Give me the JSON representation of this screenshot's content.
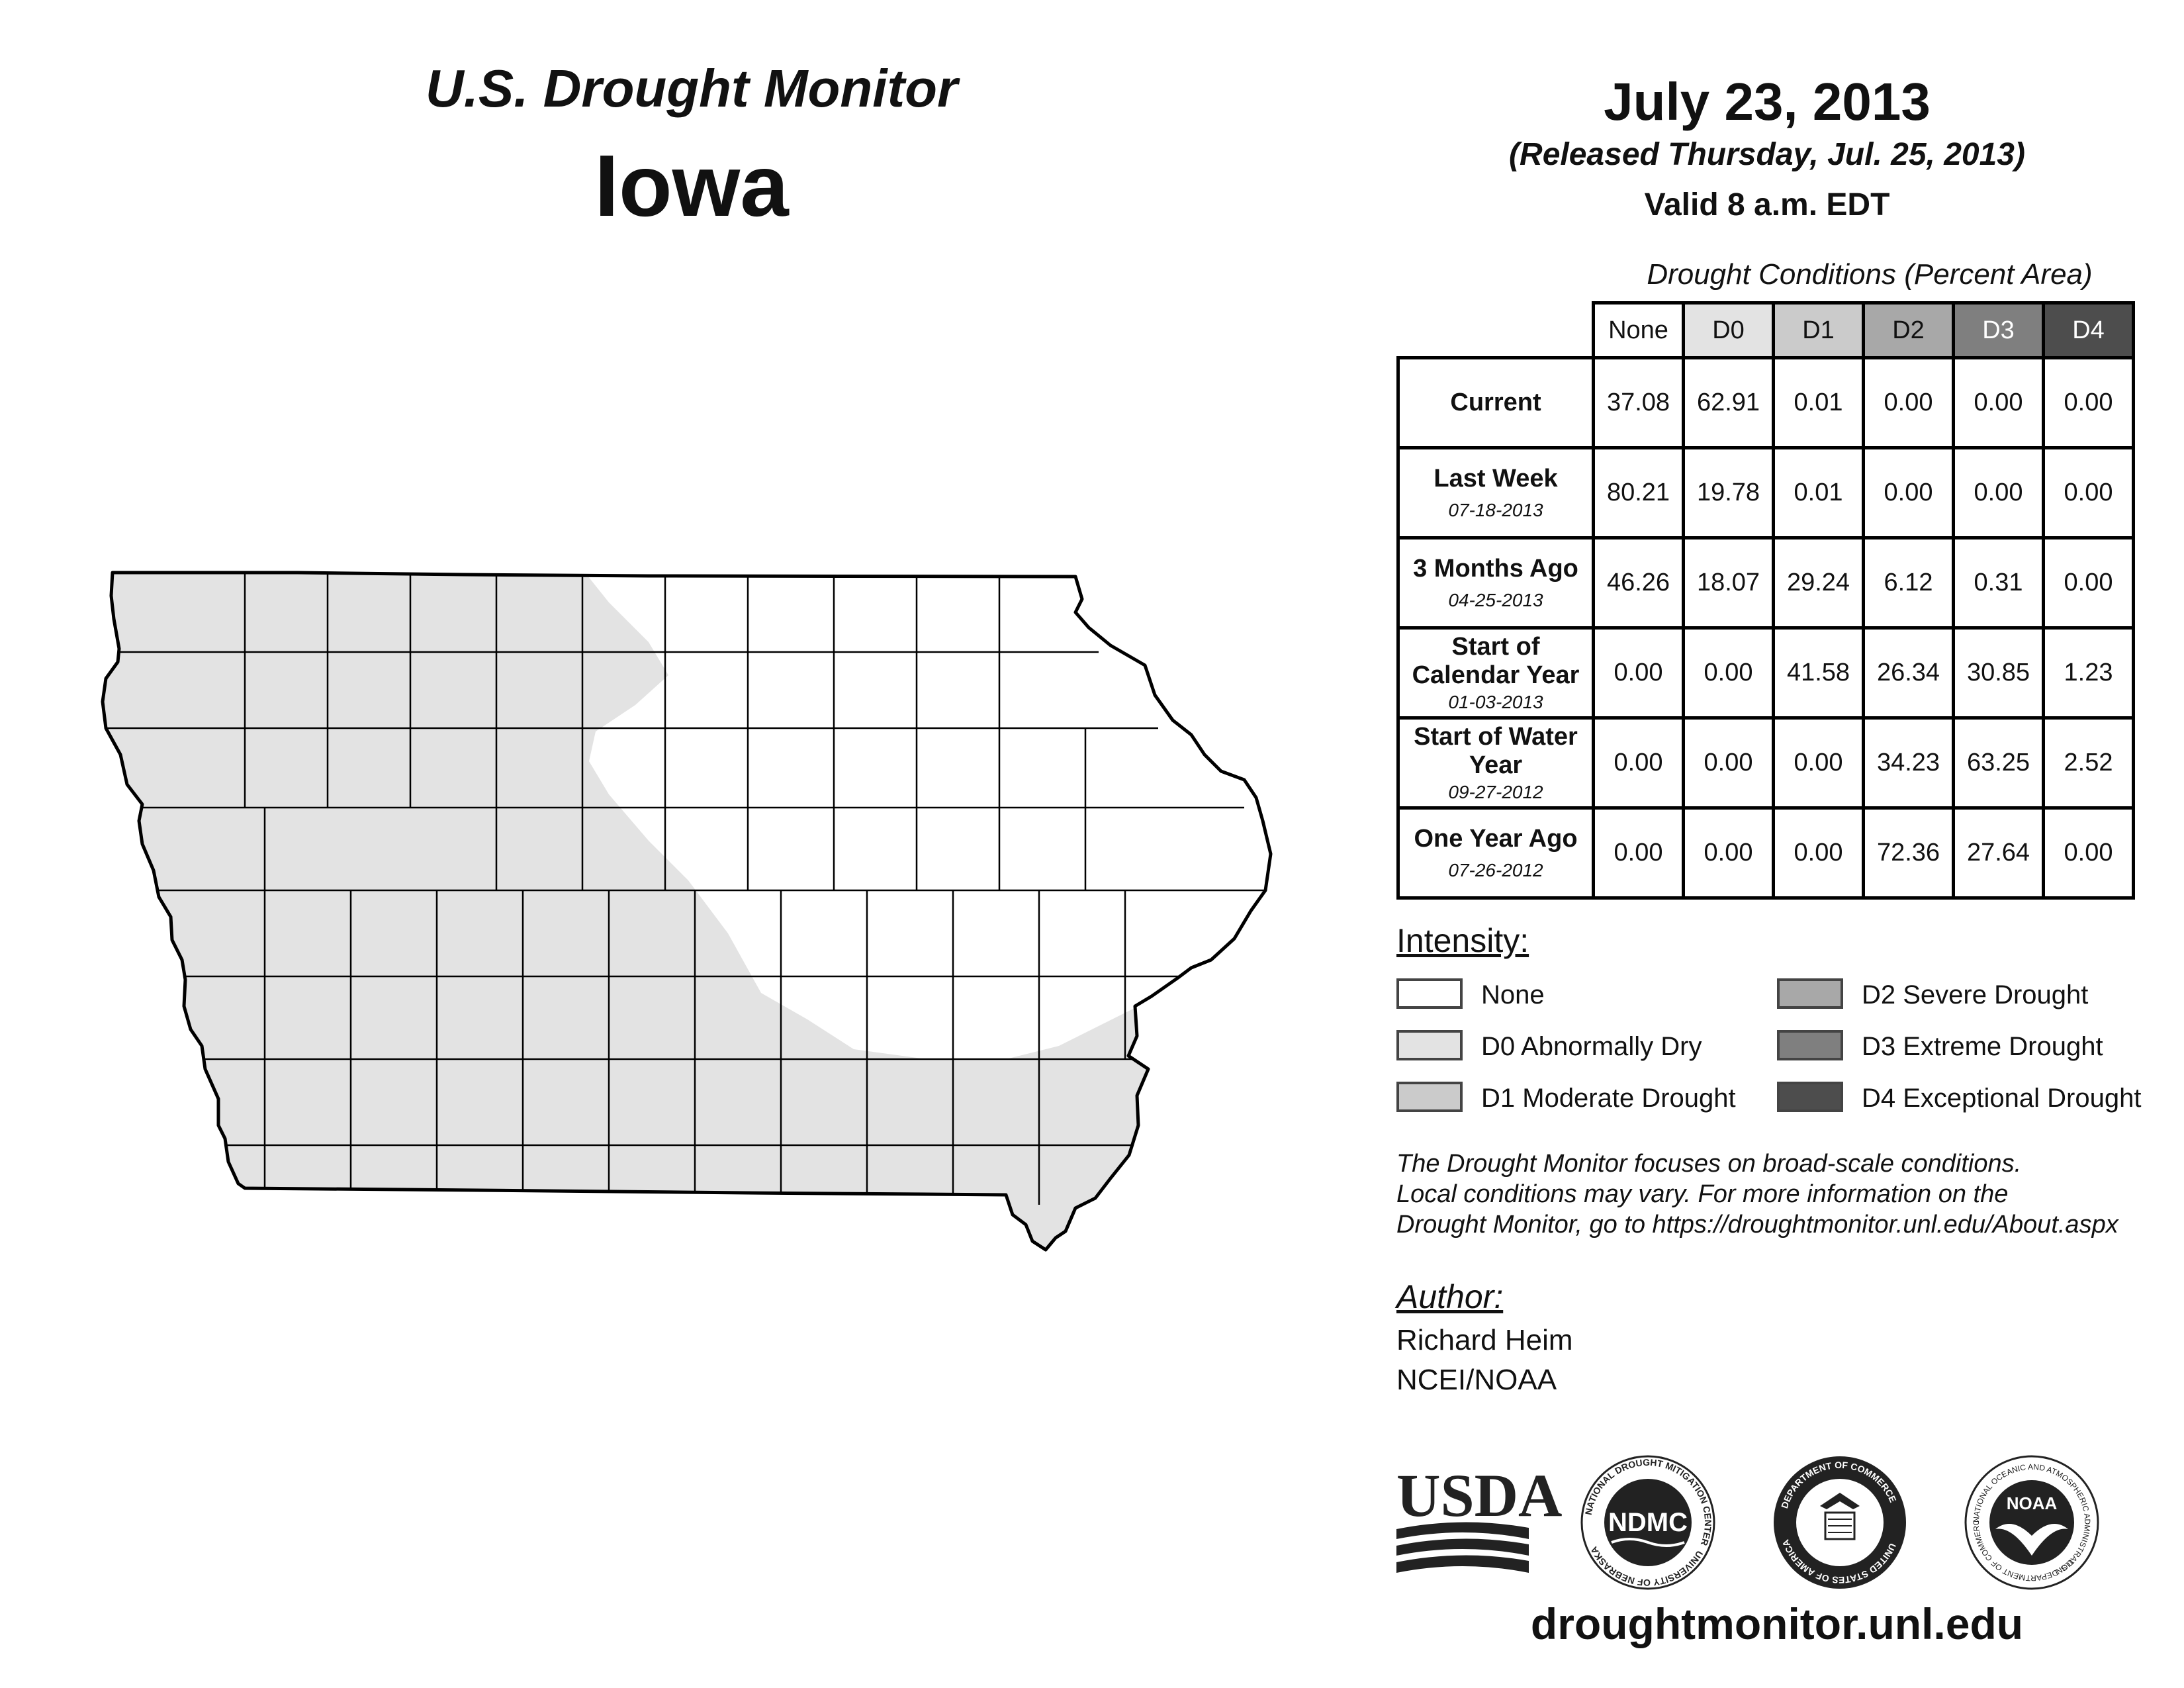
{
  "header": {
    "title": "U.S. Drought Monitor",
    "state": "Iowa",
    "date": "July 23, 2013",
    "released": "(Released Thursday, Jul. 25, 2013)",
    "valid": "Valid 8 a.m. EDT"
  },
  "table": {
    "caption": "Drought Conditions (Percent Area)",
    "columns": [
      "None",
      "D0",
      "D1",
      "D2",
      "D3",
      "D4"
    ],
    "column_colors": [
      "#ffffff",
      "#e3e3e3",
      "#cbcbcb",
      "#a8a8a8",
      "#7f7f7f",
      "#4d4d4d"
    ],
    "rows": [
      {
        "label": "Current",
        "date": "",
        "values": [
          "37.08",
          "62.91",
          "0.01",
          "0.00",
          "0.00",
          "0.00"
        ]
      },
      {
        "label": "Last Week",
        "date": "07-18-2013",
        "values": [
          "80.21",
          "19.78",
          "0.01",
          "0.00",
          "0.00",
          "0.00"
        ]
      },
      {
        "label": "3 Months Ago",
        "date": "04-25-2013",
        "values": [
          "46.26",
          "18.07",
          "29.24",
          "6.12",
          "0.31",
          "0.00"
        ]
      },
      {
        "label": "Start of Calendar Year",
        "date": "01-03-2013",
        "values": [
          "0.00",
          "0.00",
          "41.58",
          "26.34",
          "30.85",
          "1.23"
        ]
      },
      {
        "label": "Start of Water Year",
        "date": "09-27-2012",
        "values": [
          "0.00",
          "0.00",
          "0.00",
          "34.23",
          "63.25",
          "2.52"
        ]
      },
      {
        "label": "One Year Ago",
        "date": "07-26-2012",
        "values": [
          "0.00",
          "0.00",
          "0.00",
          "72.36",
          "27.64",
          "0.00"
        ]
      }
    ]
  },
  "legend": {
    "title": "Intensity:",
    "items": [
      {
        "label": "None",
        "color": "#ffffff"
      },
      {
        "label": "D0 Abnormally Dry",
        "color": "#e3e3e3"
      },
      {
        "label": "D1 Moderate Drought",
        "color": "#cbcbcb"
      },
      {
        "label": "D2 Severe Drought",
        "color": "#a8a8a8"
      },
      {
        "label": "D3 Extreme Drought",
        "color": "#7f7f7f"
      },
      {
        "label": "D4 Exceptional Drought",
        "color": "#4d4d4d"
      }
    ]
  },
  "note": {
    "line1": "The Drought Monitor focuses on broad-scale conditions.",
    "line2": "Local conditions may vary. For more information on the",
    "line3": "Drought Monitor, go to https://droughtmonitor.unl.edu/About.aspx"
  },
  "author": {
    "title": "Author:",
    "name": "Richard Heim",
    "org": "NCEI/NOAA"
  },
  "logos": {
    "usda": "USDA",
    "ndmc": "NDMC",
    "ndmc_ring_top": "NATIONAL DROUGHT MITIGATION CENTER",
    "ndmc_ring_bottom": "UNIVERSITY OF NEBRASKA",
    "doc_ring_top": "DEPARTMENT OF COMMERCE",
    "doc_ring_bottom": "UNITED STATES OF AMERICA",
    "noaa": "NOAA",
    "noaa_ring_top": "NATIONAL OCEANIC AND ATMOSPHERIC ADMINISTRATION",
    "noaa_ring_bottom": "U.S. DEPARTMENT OF COMMERCE"
  },
  "site_url": "droughtmonitor.unl.edu",
  "map": {
    "region": "Iowa",
    "d0_color": "#e3e3e3",
    "none_color": "#ffffff"
  }
}
